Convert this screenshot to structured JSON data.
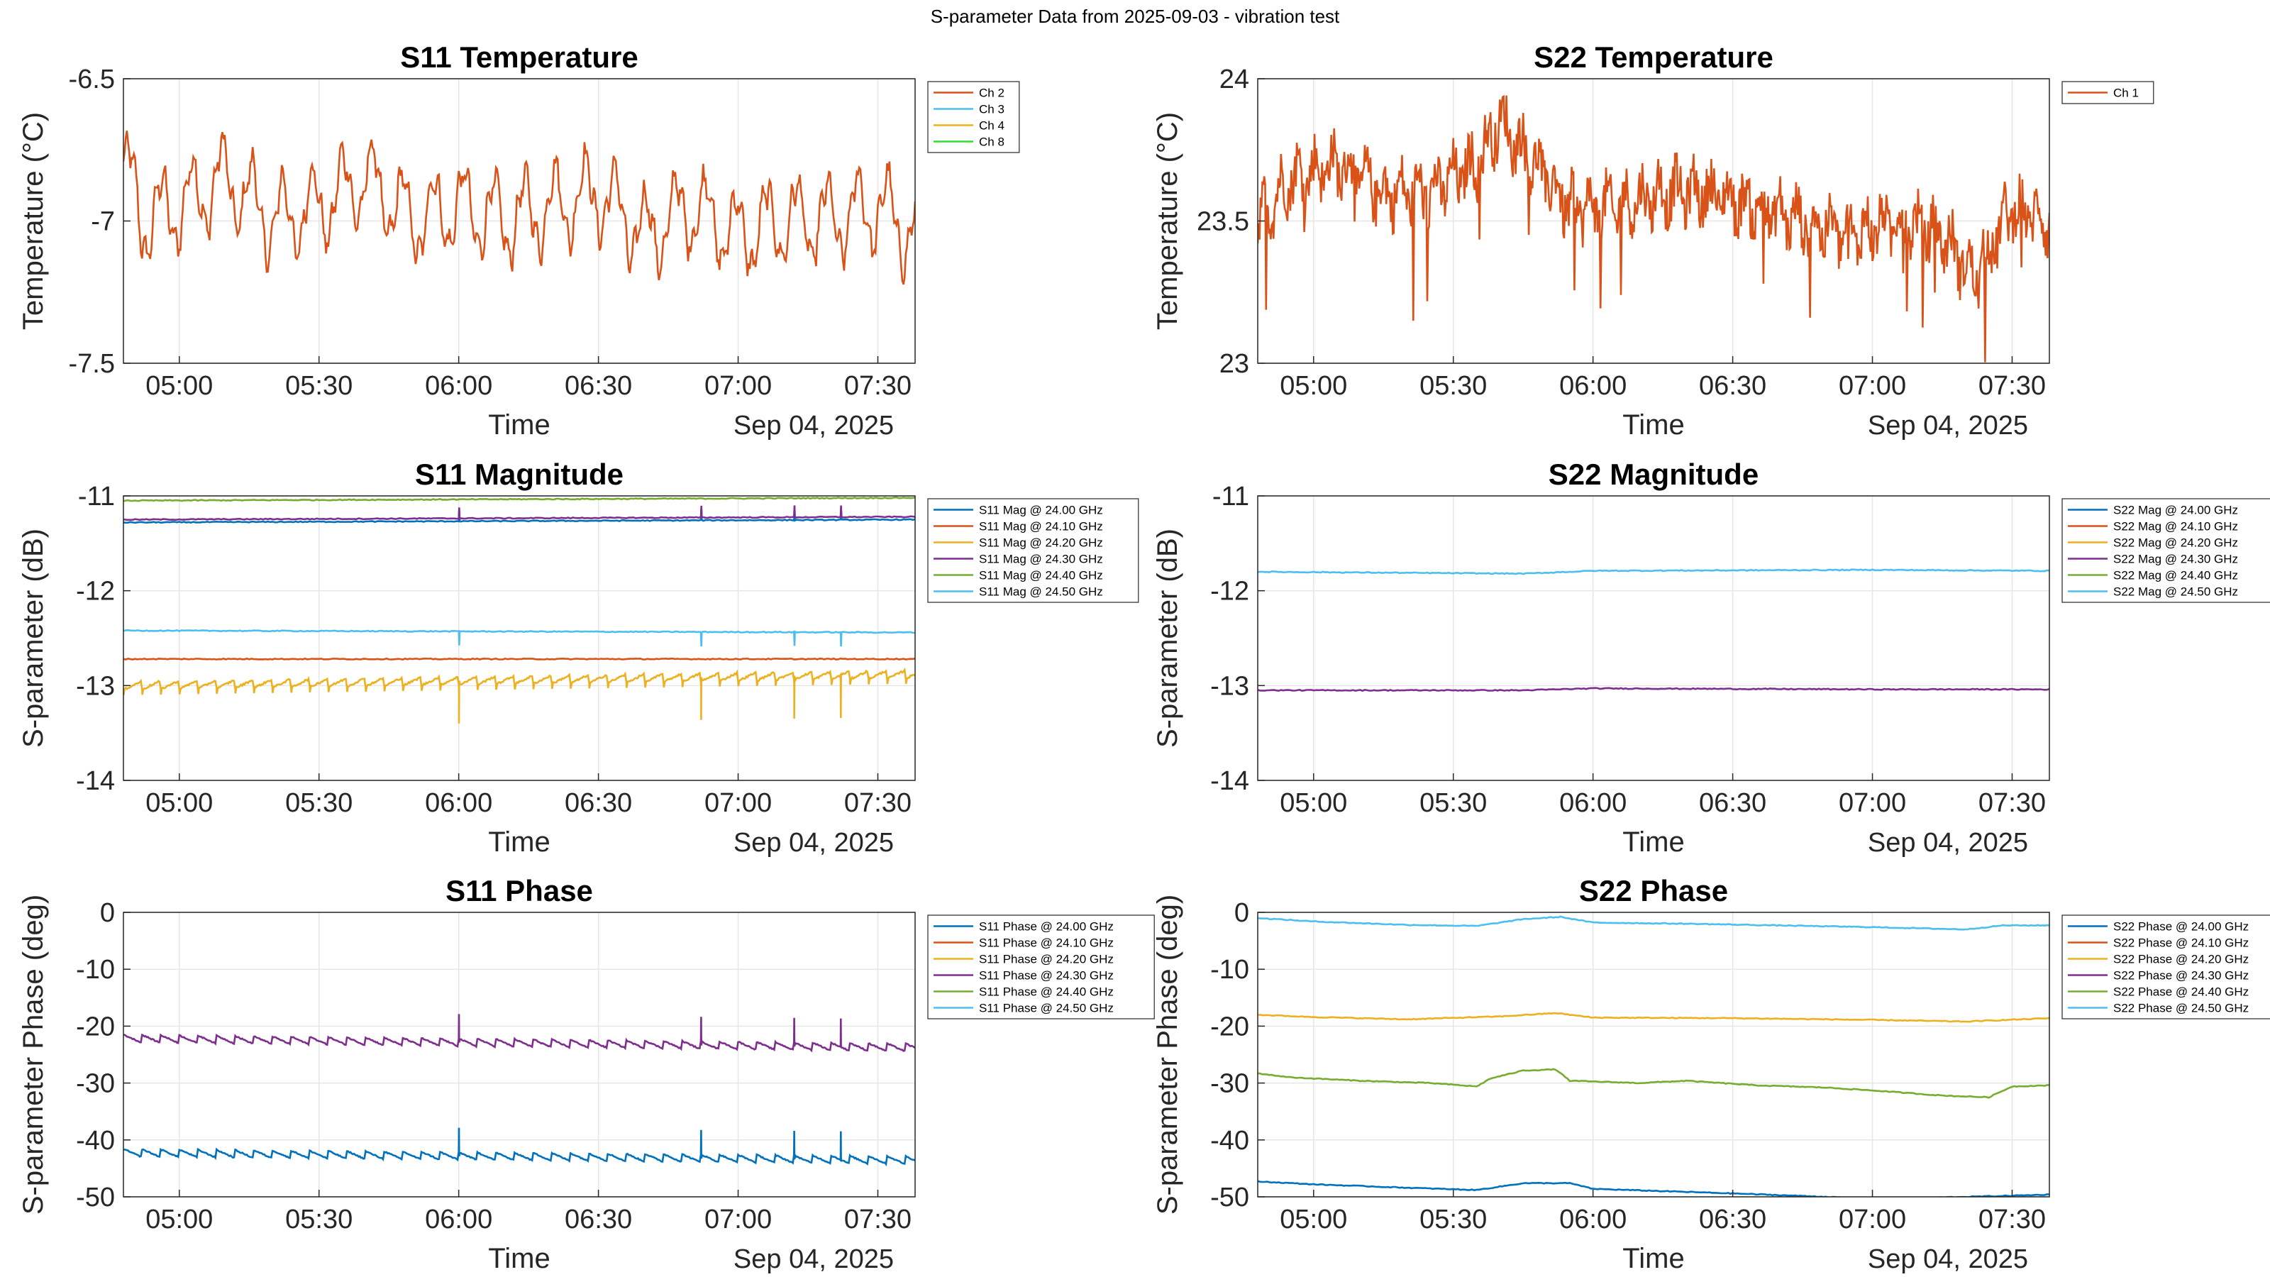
{
  "figure": {
    "suptitle": "S-parameter Data from 2025-09-03 - vibration test"
  },
  "chart_data": [
    {
      "type": "line",
      "title": "S11 Temperature",
      "xlabel": "Time",
      "ylabel": "Temperature (°C)",
      "date_label": "Sep 04, 2025",
      "xlim": [
        "04:48",
        "07:38"
      ],
      "ylim": [
        -7.5,
        -6.5
      ],
      "xticks": [
        "05:00",
        "05:30",
        "06:00",
        "06:30",
        "07:00",
        "07:30"
      ],
      "yticks": [
        "-6.5",
        "-7",
        "-7.5"
      ],
      "ytick_values": [
        -6.5,
        -7,
        -7.5
      ],
      "grid": true,
      "legend_placement": "top-right",
      "legend": [
        {
          "name": "Ch 2",
          "color": "#D95319"
        },
        {
          "name": "Ch 3",
          "color": "#4DBEEE"
        },
        {
          "name": "Ch 4",
          "color": "#EDB120"
        },
        {
          "name": "Ch 8",
          "color": "#33DD33"
        }
      ],
      "series": [
        {
          "name": "Ch 2",
          "color": "#D95319",
          "pattern": "temp_s11",
          "points": [
            [
              "04:48",
              -6.8
            ],
            [
              "04:52",
              -7.0
            ],
            [
              "05:00",
              -6.95
            ],
            [
              "05:10",
              -6.85
            ],
            [
              "05:20",
              -7.0
            ],
            [
              "05:30",
              -6.95
            ],
            [
              "05:40",
              -6.85
            ],
            [
              "05:50",
              -7.0
            ],
            [
              "06:00",
              -6.95
            ],
            [
              "06:10",
              -7.0
            ],
            [
              "06:20",
              -6.95
            ],
            [
              "06:30",
              -6.9
            ],
            [
              "06:40",
              -7.05
            ],
            [
              "06:50",
              -6.95
            ],
            [
              "07:00",
              -7.05
            ],
            [
              "07:10",
              -7.0
            ],
            [
              "07:20",
              -7.0
            ],
            [
              "07:30",
              -6.95
            ],
            [
              "07:38",
              -7.05
            ]
          ]
        }
      ]
    },
    {
      "type": "line",
      "title": "S22 Temperature",
      "xlabel": "Time",
      "ylabel": "Temperature (°C)",
      "date_label": "Sep 04, 2025",
      "xlim": [
        "04:48",
        "07:38"
      ],
      "ylim": [
        23,
        24
      ],
      "xticks": [
        "05:00",
        "05:30",
        "06:00",
        "06:30",
        "07:00",
        "07:30"
      ],
      "yticks": [
        "24",
        "23.5",
        "23"
      ],
      "ytick_values": [
        24,
        23.5,
        23
      ],
      "grid": true,
      "legend_placement": "top-right",
      "legend": [
        {
          "name": "Ch 1",
          "color": "#D95319"
        }
      ],
      "series": [
        {
          "name": "Ch 1",
          "color": "#D95319",
          "pattern": "temp_s22",
          "points": [
            [
              "04:48",
              23.5
            ],
            [
              "04:55",
              23.65
            ],
            [
              "05:05",
              23.7
            ],
            [
              "05:15",
              23.6
            ],
            [
              "05:25",
              23.6
            ],
            [
              "05:35",
              23.7
            ],
            [
              "05:40",
              23.85
            ],
            [
              "05:45",
              23.75
            ],
            [
              "05:55",
              23.55
            ],
            [
              "06:05",
              23.55
            ],
            [
              "06:15",
              23.6
            ],
            [
              "06:25",
              23.6
            ],
            [
              "06:35",
              23.55
            ],
            [
              "06:45",
              23.5
            ],
            [
              "06:55",
              23.45
            ],
            [
              "07:05",
              23.5
            ],
            [
              "07:15",
              23.45
            ],
            [
              "07:22",
              23.3
            ],
            [
              "07:30",
              23.55
            ],
            [
              "07:38",
              23.5
            ]
          ]
        }
      ]
    },
    {
      "type": "line",
      "title": "S11 Magnitude",
      "xlabel": "Time",
      "ylabel": "S-parameter (dB)",
      "date_label": "Sep 04, 2025",
      "xlim": [
        "04:48",
        "07:38"
      ],
      "ylim": [
        -14,
        -11
      ],
      "xticks": [
        "05:00",
        "05:30",
        "06:00",
        "06:30",
        "07:00",
        "07:30"
      ],
      "yticks": [
        "-11",
        "-12",
        "-13",
        "-14"
      ],
      "ytick_values": [
        -11,
        -12,
        -13,
        -14
      ],
      "grid": true,
      "legend_placement": "top-right",
      "legend": [
        {
          "name": "S11 Mag @ 24.00 GHz",
          "color": "#0072BD"
        },
        {
          "name": "S11 Mag @ 24.10 GHz",
          "color": "#D95319"
        },
        {
          "name": "S11 Mag @ 24.20 GHz",
          "color": "#EDB120"
        },
        {
          "name": "S11 Mag @ 24.30 GHz",
          "color": "#7E2F8E"
        },
        {
          "name": "S11 Mag @ 24.40 GHz",
          "color": "#77AC30"
        },
        {
          "name": "S11 Mag @ 24.50 GHz",
          "color": "#4DBEEE"
        }
      ],
      "series": [
        {
          "name": "S11 Mag @ 24.00 GHz",
          "color": "#0072BD",
          "pattern": "flat_spikes",
          "points": [
            [
              "04:48",
              -11.28
            ],
            [
              "07:38",
              -11.25
            ]
          ]
        },
        {
          "name": "S11 Mag @ 24.40 GHz",
          "color": "#77AC30",
          "pattern": "flat",
          "points": [
            [
              "04:48",
              -11.05
            ],
            [
              "07:38",
              -11.02
            ]
          ]
        },
        {
          "name": "S11 Mag @ 24.30 GHz",
          "color": "#7E2F8E",
          "pattern": "flat_spikes",
          "points": [
            [
              "04:48",
              -11.25
            ],
            [
              "07:38",
              -11.22
            ]
          ]
        },
        {
          "name": "S11 Mag @ 24.50 GHz",
          "color": "#4DBEEE",
          "pattern": "flat_spikes",
          "points": [
            [
              "04:48",
              -12.42
            ],
            [
              "07:38",
              -12.44
            ]
          ]
        },
        {
          "name": "S11 Mag @ 24.10 GHz",
          "color": "#D95319",
          "pattern": "flat",
          "points": [
            [
              "04:48",
              -12.72
            ],
            [
              "07:38",
              -12.72
            ]
          ]
        },
        {
          "name": "S11 Mag @ 24.20 GHz",
          "color": "#EDB120",
          "pattern": "sawtooth_spikes",
          "points": [
            [
              "04:48",
              -13.0
            ],
            [
              "07:38",
              -12.88
            ]
          ]
        }
      ]
    },
    {
      "type": "line",
      "title": "S22 Magnitude",
      "xlabel": "Time",
      "ylabel": "S-parameter (dB)",
      "date_label": "Sep 04, 2025",
      "xlim": [
        "04:48",
        "07:38"
      ],
      "ylim": [
        -14,
        -11
      ],
      "xticks": [
        "05:00",
        "05:30",
        "06:00",
        "06:30",
        "07:00",
        "07:30"
      ],
      "yticks": [
        "-11",
        "-12",
        "-13",
        "-14"
      ],
      "ytick_values": [
        -11,
        -12,
        -13,
        -14
      ],
      "grid": true,
      "legend_placement": "top-right",
      "legend": [
        {
          "name": "S22 Mag @ 24.00 GHz",
          "color": "#0072BD"
        },
        {
          "name": "S22 Mag @ 24.10 GHz",
          "color": "#D95319"
        },
        {
          "name": "S22 Mag @ 24.20 GHz",
          "color": "#EDB120"
        },
        {
          "name": "S22 Mag @ 24.30 GHz",
          "color": "#7E2F8E"
        },
        {
          "name": "S22 Mag @ 24.40 GHz",
          "color": "#77AC30"
        },
        {
          "name": "S22 Mag @ 24.50 GHz",
          "color": "#4DBEEE"
        }
      ],
      "series": [
        {
          "name": "S22 Mag @ 24.50 GHz",
          "color": "#4DBEEE",
          "pattern": "smooth",
          "points": [
            [
              "04:48",
              -11.8
            ],
            [
              "05:45",
              -11.82
            ],
            [
              "06:00",
              -11.79
            ],
            [
              "07:00",
              -11.78
            ],
            [
              "07:38",
              -11.79
            ]
          ]
        },
        {
          "name": "S22 Mag @ 24.30 GHz",
          "color": "#7E2F8E",
          "pattern": "smooth",
          "points": [
            [
              "04:48",
              -13.05
            ],
            [
              "05:45",
              -13.05
            ],
            [
              "06:00",
              -13.03
            ],
            [
              "07:00",
              -13.04
            ],
            [
              "07:38",
              -13.04
            ]
          ]
        }
      ]
    },
    {
      "type": "line",
      "title": "S11 Phase",
      "xlabel": "Time",
      "ylabel": "S-parameter Phase (deg)",
      "date_label": "Sep 04, 2025",
      "xlim": [
        "04:48",
        "07:38"
      ],
      "ylim": [
        -50,
        0
      ],
      "xticks": [
        "05:00",
        "05:30",
        "06:00",
        "06:30",
        "07:00",
        "07:30"
      ],
      "yticks": [
        "0",
        "-10",
        "-20",
        "-30",
        "-40",
        "-50"
      ],
      "ytick_values": [
        0,
        -10,
        -20,
        -30,
        -40,
        -50
      ],
      "grid": true,
      "legend_placement": "top-right",
      "legend": [
        {
          "name": "S11 Phase @ 24.00 GHz",
          "color": "#0072BD"
        },
        {
          "name": "S11 Phase @ 24.10 GHz",
          "color": "#D95319"
        },
        {
          "name": "S11 Phase @ 24.20 GHz",
          "color": "#EDB120"
        },
        {
          "name": "S11 Phase @ 24.30 GHz",
          "color": "#7E2F8E"
        },
        {
          "name": "S11 Phase @ 24.40 GHz",
          "color": "#77AC30"
        },
        {
          "name": "S11 Phase @ 24.50 GHz",
          "color": "#4DBEEE"
        }
      ],
      "series": [
        {
          "name": "S11 Phase @ 24.30 GHz",
          "color": "#7E2F8E",
          "pattern": "sawtooth_up_spikes",
          "points": [
            [
              "04:48",
              -22.2
            ],
            [
              "07:38",
              -23.8
            ]
          ]
        },
        {
          "name": "S11 Phase @ 24.00 GHz",
          "color": "#0072BD",
          "pattern": "sawtooth_up_spikes",
          "points": [
            [
              "04:48",
              -42.3
            ],
            [
              "07:38",
              -43.6
            ]
          ]
        }
      ]
    },
    {
      "type": "line",
      "title": "S22 Phase",
      "xlabel": "Time",
      "ylabel": "S-parameter Phase (deg)",
      "date_label": "Sep 04, 2025",
      "xlim": [
        "04:48",
        "07:38"
      ],
      "ylim": [
        -50,
        0
      ],
      "xticks": [
        "05:00",
        "05:30",
        "06:00",
        "06:30",
        "07:00",
        "07:30"
      ],
      "yticks": [
        "0",
        "-10",
        "-20",
        "-30",
        "-40",
        "-50"
      ],
      "ytick_values": [
        0,
        -10,
        -20,
        -30,
        -40,
        -50
      ],
      "grid": true,
      "legend_placement": "top-right",
      "legend": [
        {
          "name": "S22 Phase @ 24.00 GHz",
          "color": "#0072BD"
        },
        {
          "name": "S22 Phase @ 24.10 GHz",
          "color": "#D95319"
        },
        {
          "name": "S22 Phase @ 24.20 GHz",
          "color": "#EDB120"
        },
        {
          "name": "S22 Phase @ 24.30 GHz",
          "color": "#7E2F8E"
        },
        {
          "name": "S22 Phase @ 24.40 GHz",
          "color": "#77AC30"
        },
        {
          "name": "S22 Phase @ 24.50 GHz",
          "color": "#4DBEEE"
        }
      ],
      "series": [
        {
          "name": "S22 Phase @ 24.50 GHz",
          "color": "#4DBEEE",
          "pattern": "stepped",
          "points": [
            [
              "04:48",
              -1.0
            ],
            [
              "05:00",
              -1.6
            ],
            [
              "05:20",
              -2.2
            ],
            [
              "05:35",
              -2.4
            ],
            [
              "05:45",
              -1.2
            ],
            [
              "05:53",
              -0.8
            ],
            [
              "06:00",
              -1.8
            ],
            [
              "06:20",
              -2.0
            ],
            [
              "06:40",
              -2.3
            ],
            [
              "07:00",
              -2.6
            ],
            [
              "07:10",
              -2.8
            ],
            [
              "07:20",
              -3.0
            ],
            [
              "07:28",
              -2.3
            ],
            [
              "07:38",
              -2.3
            ]
          ]
        },
        {
          "name": "S22 Phase @ 24.20 GHz",
          "color": "#EDB120",
          "pattern": "stepped",
          "points": [
            [
              "04:48",
              -18.0
            ],
            [
              "05:00",
              -18.4
            ],
            [
              "05:20",
              -18.8
            ],
            [
              "05:40",
              -18.3
            ],
            [
              "05:52",
              -17.7
            ],
            [
              "06:00",
              -18.5
            ],
            [
              "06:30",
              -18.6
            ],
            [
              "07:00",
              -18.9
            ],
            [
              "07:20",
              -19.2
            ],
            [
              "07:38",
              -18.6
            ]
          ]
        },
        {
          "name": "S22 Phase @ 24.40 GHz",
          "color": "#77AC30",
          "pattern": "stepped",
          "points": [
            [
              "04:48",
              -28.3
            ],
            [
              "04:55",
              -29.0
            ],
            [
              "05:10",
              -29.6
            ],
            [
              "05:25",
              -30.0
            ],
            [
              "05:35",
              -30.6
            ],
            [
              "05:38",
              -29.2
            ],
            [
              "05:45",
              -27.8
            ],
            [
              "05:52",
              -27.6
            ],
            [
              "05:55",
              -29.6
            ],
            [
              "06:10",
              -30.0
            ],
            [
              "06:20",
              -29.6
            ],
            [
              "06:35",
              -30.4
            ],
            [
              "06:50",
              -30.8
            ],
            [
              "07:00",
              -31.3
            ],
            [
              "07:15",
              -32.2
            ],
            [
              "07:25",
              -32.5
            ],
            [
              "07:30",
              -30.6
            ],
            [
              "07:38",
              -30.4
            ]
          ]
        },
        {
          "name": "S22 Phase @ 24.00 GHz",
          "color": "#0072BD",
          "pattern": "stepped",
          "points": [
            [
              "04:48",
              -47.3
            ],
            [
              "05:00",
              -47.8
            ],
            [
              "05:20",
              -48.4
            ],
            [
              "05:35",
              -48.8
            ],
            [
              "05:45",
              -47.6
            ],
            [
              "05:55",
              -47.6
            ],
            [
              "06:00",
              -48.6
            ],
            [
              "06:30",
              -49.4
            ],
            [
              "06:50",
              -50.0
            ],
            [
              "07:00",
              -50.4
            ],
            [
              "07:30",
              -49.8
            ],
            [
              "07:38",
              -49.6
            ]
          ]
        }
      ]
    }
  ]
}
